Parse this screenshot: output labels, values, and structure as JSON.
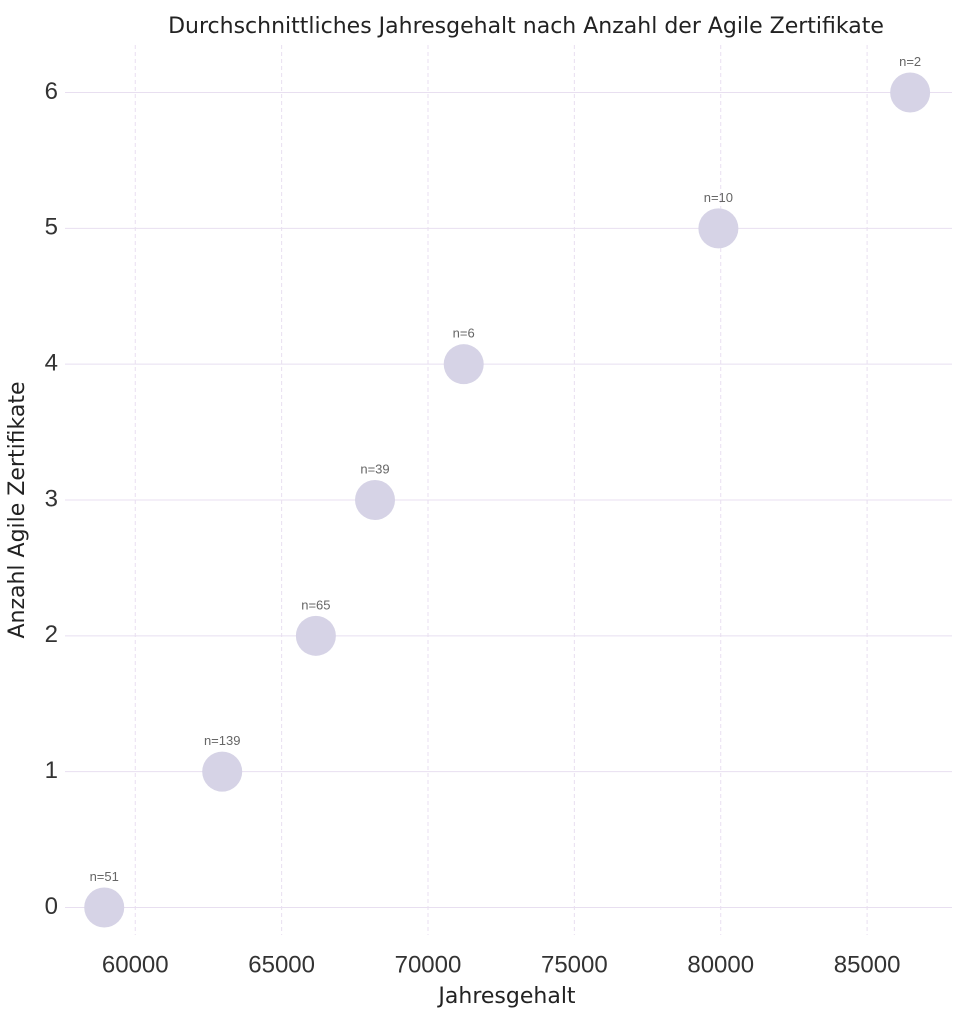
{
  "chart_data": {
    "type": "scatter",
    "title": "Durchschnittliches Jahresgehalt nach Anzahl der Agile Zertifikate",
    "x_label": "Jahresgehalt",
    "y_label": "Anzahl Agile Zertifikate",
    "x": [
      58940,
      62970,
      66170,
      68190,
      71220,
      79920,
      86470
    ],
    "values": [
      0,
      1,
      2,
      3,
      4,
      5,
      6
    ],
    "labels": [
      "n=51",
      "n=139",
      "n=65",
      "n=39",
      "n=6",
      "n=10",
      "n=2"
    ],
    "color": "#d6d3e6",
    "xlim": [
      57600,
      87900
    ],
    "ylim": [
      -0.35,
      6.35
    ],
    "xticks": [
      60000,
      65000,
      70000,
      75000,
      80000,
      85000
    ],
    "yticks": [
      0,
      1,
      2,
      3,
      4,
      5,
      6
    ],
    "grid": true
  }
}
